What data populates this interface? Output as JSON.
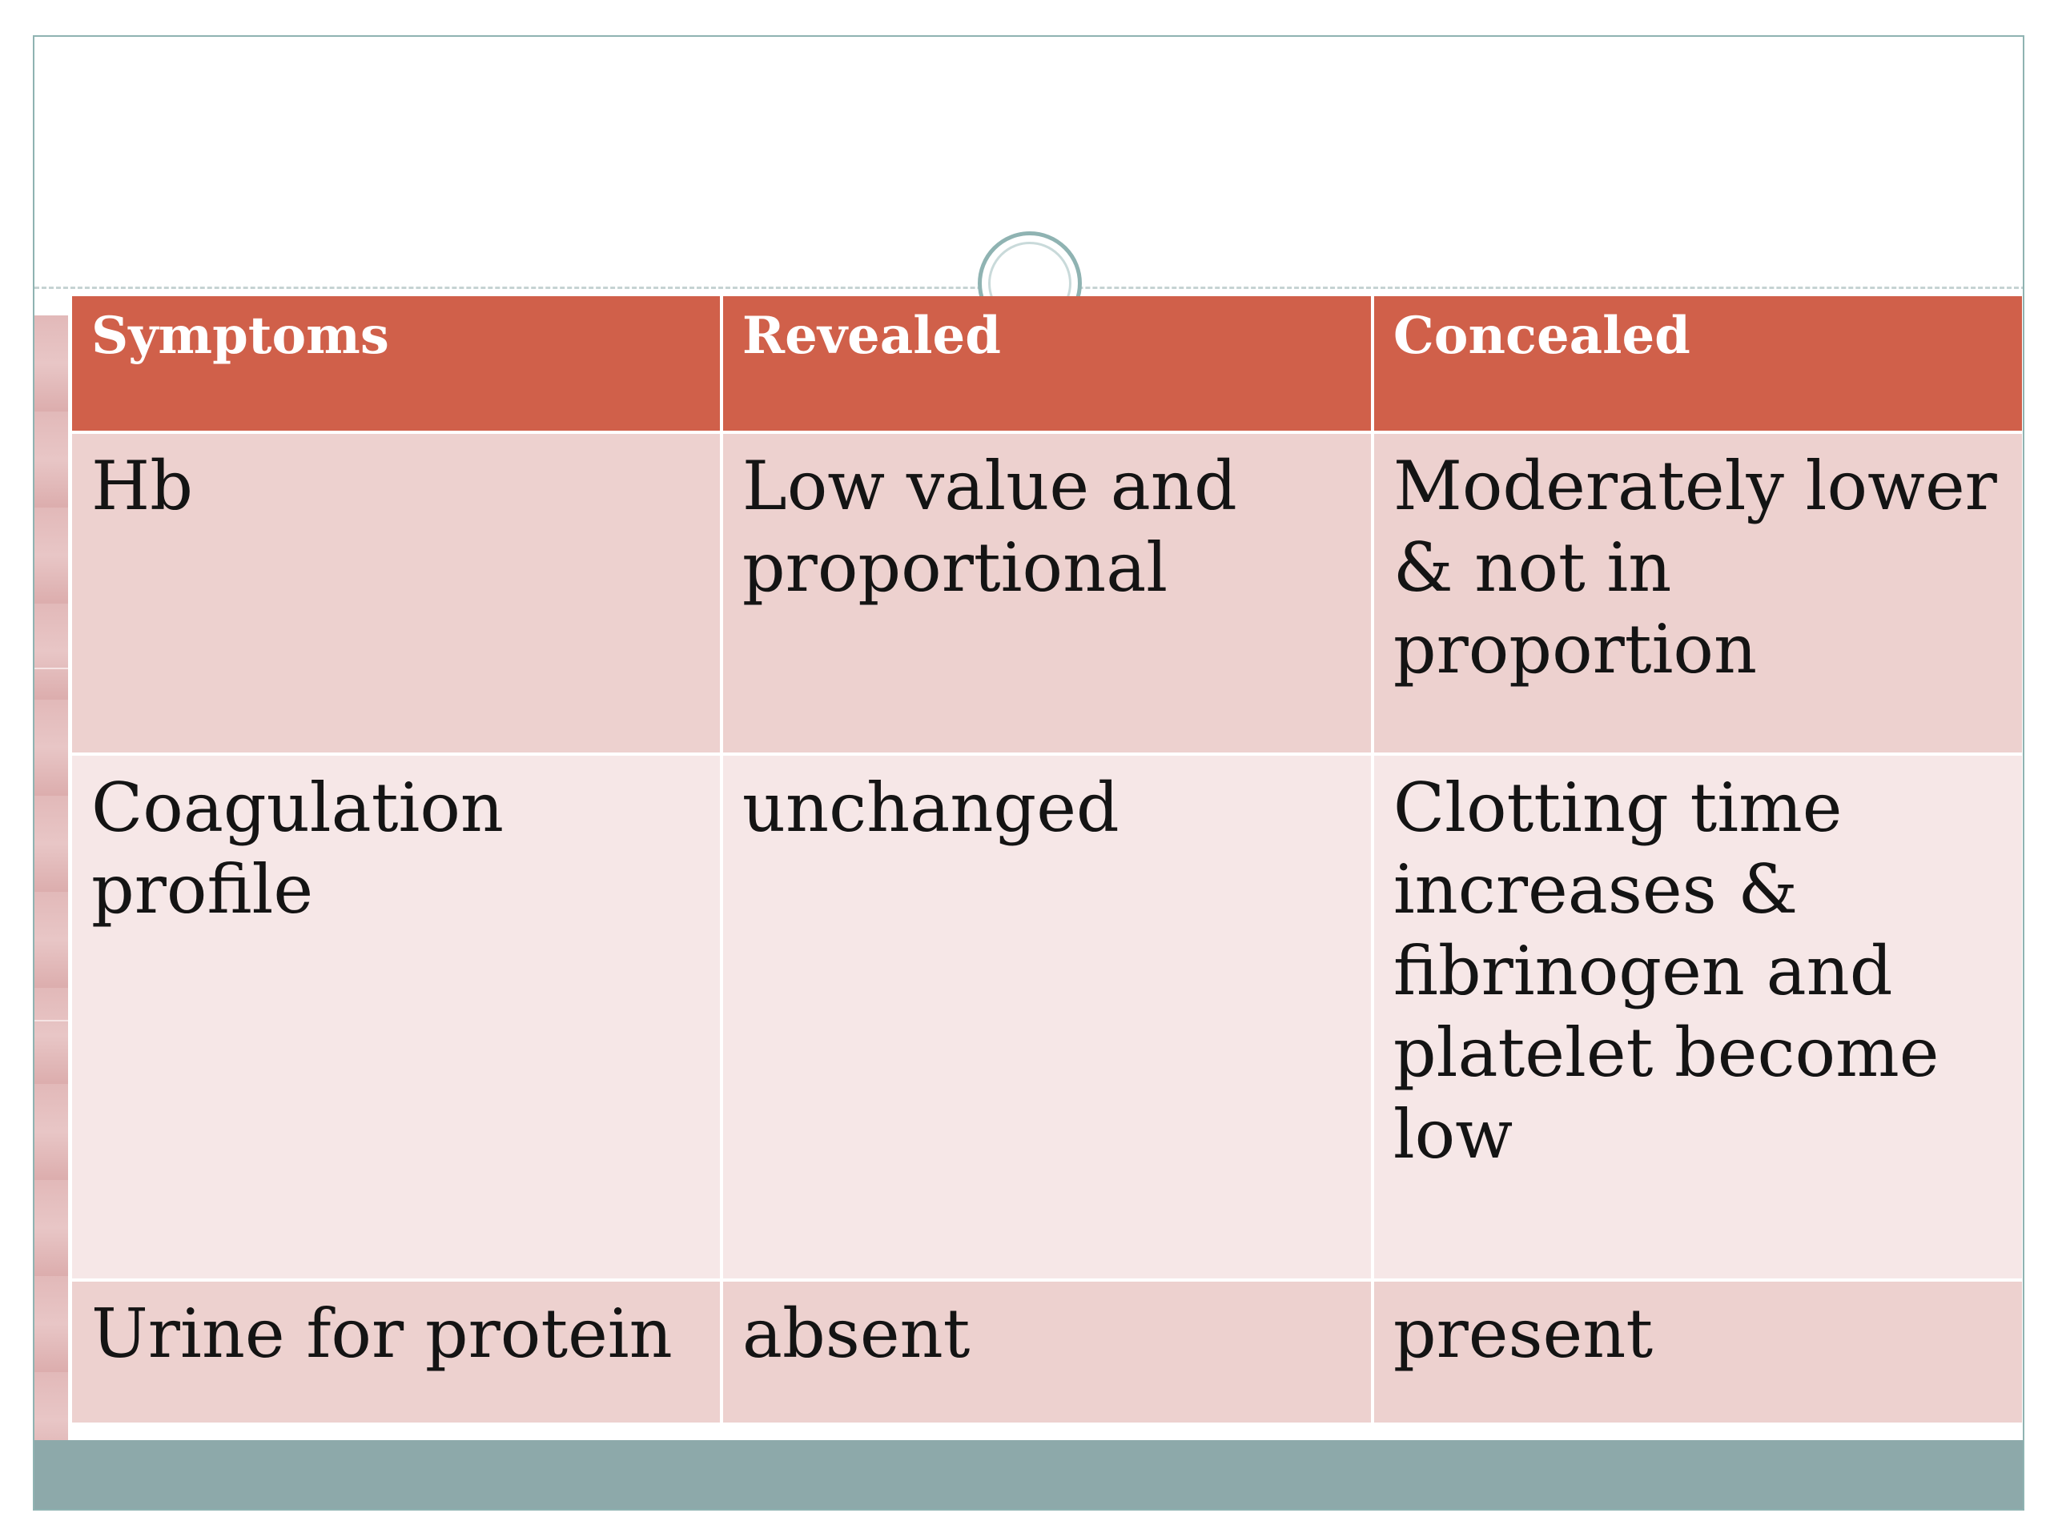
{
  "table": {
    "headers": [
      "Symptoms",
      "Revealed",
      "Concealed"
    ],
    "rows": [
      [
        "Hb",
        "Low value and proportional",
        "Moderately lower & not in proportion"
      ],
      [
        "Coagulation profile",
        "unchanged",
        "Clotting time increases & fibrinogen and platelet become low"
      ],
      [
        "Urine for protein",
        "absent",
        "present"
      ]
    ]
  },
  "colors": {
    "header_bg": "#d0604a",
    "row_odd_bg": "#edd1cf",
    "row_even_bg": "#f6e7e7",
    "accent_teal": "#8da9aa"
  }
}
